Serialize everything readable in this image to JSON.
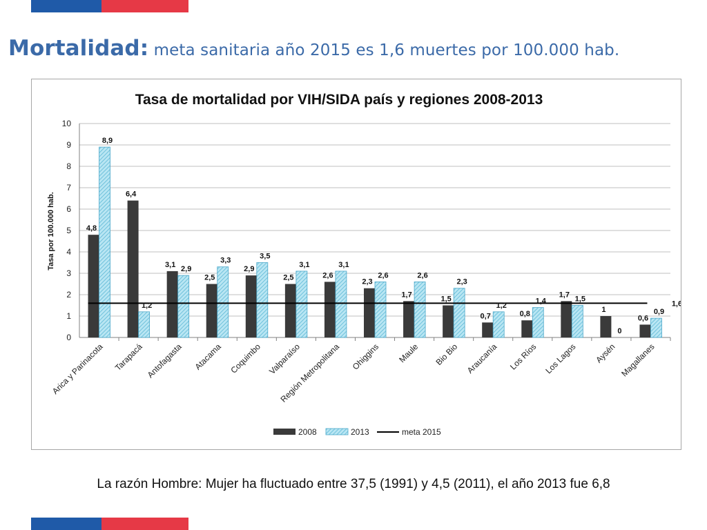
{
  "slide": {
    "title_bold": "Mortalidad:",
    "title_rest": "meta sanitaria año 2015 es 1,6 muertes por 100.000 hab.",
    "footnote": "La razón Hombre: Mujer ha fluctuado entre  37,5 (1991) y 4,5 (2011), el año 2013 fue 6,8",
    "colors": {
      "title": "#3b6aa8",
      "flag_blue": "#1f5aa8",
      "flag_red": "#e63946"
    }
  },
  "chart_data": {
    "type": "bar",
    "title": "Tasa de mortalidad por VIH/SIDA país y regiones 2008-2013",
    "ylabel": "Tasa por  100.000 hab.",
    "xlabel": "",
    "ylim": [
      0,
      10
    ],
    "yticks": [
      0,
      1,
      2,
      3,
      4,
      5,
      6,
      7,
      8,
      9,
      10
    ],
    "grid": true,
    "legend_position": "bottom",
    "categories": [
      "Arica y Parinacota",
      "Tarapacá",
      "Antofagasta",
      "Atacama",
      "Coquimbo",
      "Valparaíso",
      "Región Metropolitana",
      "Ohiggins",
      "Maule",
      "Bio Bio",
      "Araucanía",
      "Los Ríos",
      "Los Lagos",
      "Aysén",
      "Magallanes"
    ],
    "series": [
      {
        "name": "2008",
        "color": "#3a3a3a",
        "values": [
          4.8,
          6.4,
          3.1,
          2.5,
          2.9,
          2.5,
          2.6,
          2.3,
          1.7,
          1.5,
          0.7,
          0.8,
          1.7,
          1,
          0.6
        ],
        "labels": [
          "4,8",
          "6,4",
          "3,1",
          "2,5",
          "2,9",
          "2,5",
          "2,6",
          "2,3",
          "1,7",
          "1,5",
          "0,7",
          "0,8",
          "1,7",
          "1",
          "0,6"
        ]
      },
      {
        "name": "2013",
        "color": "#8fd3e8",
        "values": [
          8.9,
          1.2,
          2.9,
          3.3,
          3.5,
          3.1,
          3.1,
          2.6,
          2.6,
          2.3,
          1.2,
          1.4,
          1.5,
          0,
          0.9
        ],
        "labels": [
          "8,9",
          "1,2",
          "2,9",
          "3,3",
          "3,5",
          "3,1",
          "3,1",
          "2,6",
          "2,6",
          "2,3",
          "1,2",
          "1,4",
          "1,5",
          "0",
          "0,9"
        ]
      }
    ],
    "reference_line": {
      "name": "meta 2015",
      "value": 1.6,
      "label": "1,6",
      "color": "#000000"
    }
  }
}
